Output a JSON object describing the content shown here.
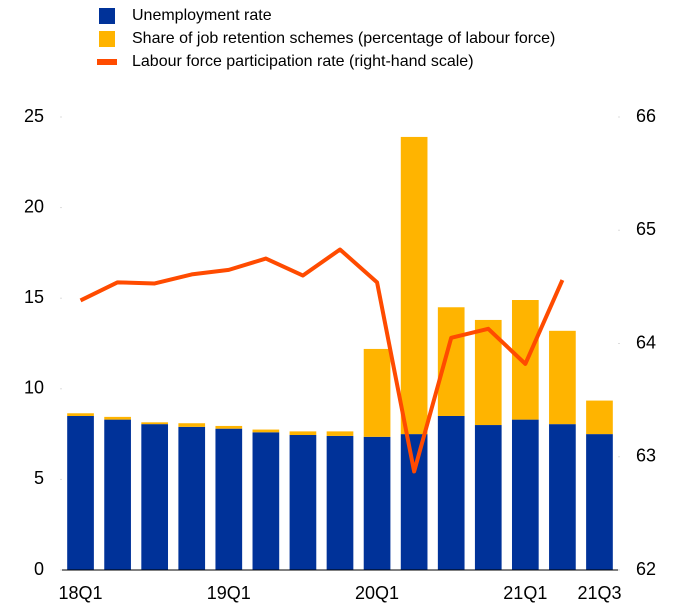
{
  "chart_data": {
    "type": "bar",
    "stacked": true,
    "categories": [
      "18Q1",
      null,
      null,
      null,
      "19Q1",
      null,
      null,
      null,
      "20Q1",
      null,
      null,
      null,
      "21Q1",
      null,
      "21Q3"
    ],
    "series": [
      {
        "name": "Unemployment rate",
        "color": "#003299",
        "type": "bar",
        "values": [
          8.5,
          8.3,
          8.05,
          7.9,
          7.8,
          7.6,
          7.45,
          7.4,
          7.35,
          7.5,
          8.5,
          8.0,
          8.3,
          8.05,
          7.5
        ]
      },
      {
        "name": "Share of job retention schemes (percentage of labour force)",
        "color": "#ffb400",
        "type": "bar",
        "values": [
          0.15,
          0.15,
          0.1,
          0.2,
          0.15,
          0.15,
          0.2,
          0.25,
          4.85,
          16.4,
          6.0,
          5.8,
          6.6,
          5.15,
          1.85
        ]
      },
      {
        "name": "Labour force participation rate (right-hand scale)",
        "color": "#ff4b00",
        "type": "line",
        "axis": "y2",
        "values": [
          64.38,
          64.54,
          64.53,
          64.61,
          64.65,
          64.75,
          64.6,
          64.83,
          64.54,
          62.87,
          64.05,
          64.13,
          63.82,
          64.56,
          null
        ]
      }
    ],
    "ylim": [
      0,
      25
    ],
    "yticks": [
      0,
      5,
      10,
      15,
      20,
      25
    ],
    "y2lim": [
      62,
      66
    ],
    "y2ticks": [
      62,
      63,
      64,
      65,
      66
    ],
    "legend": "top-left"
  }
}
